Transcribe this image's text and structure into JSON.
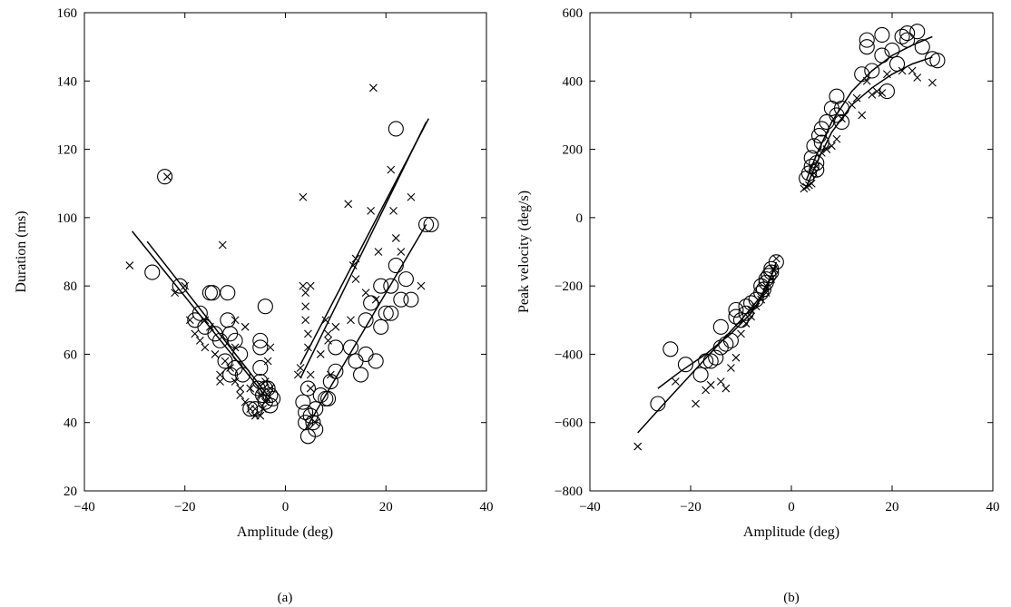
{
  "chart_data": [
    {
      "type": "scatter",
      "panel_label": "(a)",
      "xlabel": "Amplitude (deg)",
      "ylabel": "Duration (ms)",
      "xlim": [
        -40,
        40
      ],
      "ylim": [
        20,
        160
      ],
      "xticks": [
        -40,
        -20,
        0,
        20,
        40
      ],
      "yticks": [
        20,
        40,
        60,
        80,
        100,
        120,
        140,
        160
      ],
      "xtick_labels": [
        "−40",
        "−20",
        "0",
        "20",
        "40"
      ],
      "ytick_labels": [
        "20",
        "40",
        "60",
        "80",
        "100",
        "120",
        "140",
        "160"
      ],
      "series": [
        {
          "marker": "circle",
          "points": [
            [
              -24,
              112
            ],
            [
              -26.5,
              84
            ],
            [
              -21,
              80
            ],
            [
              -18,
              70
            ],
            [
              -17,
              72
            ],
            [
              -16,
              68
            ],
            [
              -15,
              78
            ],
            [
              -14.5,
              78
            ],
            [
              -14,
              66
            ],
            [
              -13,
              64
            ],
            [
              -12,
              58
            ],
            [
              -11.5,
              78
            ],
            [
              -11.5,
              70
            ],
            [
              -11,
              66
            ],
            [
              -11,
              54
            ],
            [
              -10,
              64
            ],
            [
              -10,
              56
            ],
            [
              -9,
              60
            ],
            [
              -8.5,
              54
            ],
            [
              -7,
              44
            ],
            [
              -6,
              44
            ],
            [
              -5.5,
              50
            ],
            [
              -5,
              64
            ],
            [
              -5,
              62
            ],
            [
              -5,
              56
            ],
            [
              -5,
              52
            ],
            [
              -4.5,
              48
            ],
            [
              -4,
              50
            ],
            [
              -4,
              46
            ],
            [
              -4,
              74
            ],
            [
              -3.5,
              50
            ],
            [
              -3,
              48
            ],
            [
              -3,
              45
            ],
            [
              -2.5,
              47
            ],
            [
              3.5,
              46
            ],
            [
              4,
              43
            ],
            [
              4,
              40
            ],
            [
              4.5,
              36
            ],
            [
              4.5,
              50
            ],
            [
              5,
              42
            ],
            [
              5.5,
              40
            ],
            [
              6,
              44
            ],
            [
              6,
              38
            ],
            [
              7,
              48
            ],
            [
              8,
              47
            ],
            [
              8.5,
              47
            ],
            [
              9,
              52
            ],
            [
              10,
              55
            ],
            [
              10,
              62
            ],
            [
              13,
              62
            ],
            [
              14,
              58
            ],
            [
              15,
              54
            ],
            [
              16,
              60
            ],
            [
              16,
              70
            ],
            [
              17,
              75
            ],
            [
              18,
              58
            ],
            [
              19,
              68
            ],
            [
              19,
              80
            ],
            [
              20,
              72
            ],
            [
              21,
              72
            ],
            [
              21,
              80
            ],
            [
              22,
              126
            ],
            [
              22,
              86
            ],
            [
              23,
              76
            ],
            [
              24,
              82
            ],
            [
              25,
              76
            ],
            [
              28,
              98
            ],
            [
              29,
              98
            ]
          ]
        },
        {
          "marker": "cross",
          "points": [
            [
              -31,
              86
            ],
            [
              -23.5,
              112
            ],
            [
              -22,
              78
            ],
            [
              -20,
              80
            ],
            [
              -19,
              70
            ],
            [
              -18,
              66
            ],
            [
              -17,
              64
            ],
            [
              -16,
              70
            ],
            [
              -16,
              62
            ],
            [
              -15,
              68
            ],
            [
              -14,
              60
            ],
            [
              -13,
              54
            ],
            [
              -13,
              52
            ],
            [
              -12.5,
              92
            ],
            [
              -12,
              58
            ],
            [
              -11,
              56
            ],
            [
              -10,
              70
            ],
            [
              -10,
              62
            ],
            [
              -10,
              52
            ],
            [
              -9,
              50
            ],
            [
              -9,
              48
            ],
            [
              -8,
              46
            ],
            [
              -8,
              68
            ],
            [
              -7,
              50
            ],
            [
              -7,
              44
            ],
            [
              -6,
              44
            ],
            [
              -6,
              42
            ],
            [
              -5,
              42
            ],
            [
              -5,
              48
            ],
            [
              -4.5,
              44
            ],
            [
              -4,
              52
            ],
            [
              -4,
              46
            ],
            [
              -3.5,
              58
            ],
            [
              -3,
              62
            ],
            [
              -3,
              50
            ],
            [
              2.5,
              54
            ],
            [
              3,
              56
            ],
            [
              3.5,
              106
            ],
            [
              3.5,
              80
            ],
            [
              4,
              78
            ],
            [
              4,
              74
            ],
            [
              4,
              70
            ],
            [
              4.5,
              66
            ],
            [
              4.5,
              62
            ],
            [
              5,
              80
            ],
            [
              5,
              54
            ],
            [
              5,
              50
            ],
            [
              6,
              40
            ],
            [
              7,
              60
            ],
            [
              8,
              70
            ],
            [
              8.5,
              66
            ],
            [
              8.5,
              64
            ],
            [
              9,
              54
            ],
            [
              10,
              68
            ],
            [
              12.5,
              104
            ],
            [
              13,
              70
            ],
            [
              13.5,
              86
            ],
            [
              14,
              88
            ],
            [
              14,
              82
            ],
            [
              16,
              78
            ],
            [
              17,
              102
            ],
            [
              17.5,
              138
            ],
            [
              18,
              76
            ],
            [
              18.5,
              90
            ],
            [
              21,
              114
            ],
            [
              21.5,
              102
            ],
            [
              22,
              94
            ],
            [
              23,
              90
            ],
            [
              25,
              106
            ],
            [
              27,
              80
            ]
          ]
        }
      ],
      "fit_lines": [
        [
          [
            -30.5,
            96
          ],
          [
            -3,
            46
          ]
        ],
        [
          [
            -27.5,
            93
          ],
          [
            -3,
            47
          ]
        ],
        [
          [
            3,
            57
          ],
          [
            28.5,
            129
          ]
        ],
        [
          [
            3,
            53
          ],
          [
            28,
            128
          ]
        ],
        [
          [
            4,
            38
          ],
          [
            28,
            98
          ]
        ]
      ]
    },
    {
      "type": "scatter",
      "panel_label": "(b)",
      "xlabel": "Amplitude (deg)",
      "ylabel": "Peak velocity (deg/s)",
      "xlim": [
        -40,
        40
      ],
      "ylim": [
        -800,
        600
      ],
      "xticks": [
        -40,
        -20,
        0,
        20,
        40
      ],
      "yticks": [
        -800,
        -600,
        -400,
        -200,
        0,
        200,
        400,
        600
      ],
      "xtick_labels": [
        "−40",
        "−20",
        "0",
        "20",
        "40"
      ],
      "ytick_labels": [
        "−800",
        "−600",
        "−400",
        "−200",
        "0",
        "200",
        "400",
        "600"
      ],
      "series": [
        {
          "marker": "circle",
          "points": [
            [
              -26.5,
              -545
            ],
            [
              -24,
              -385
            ],
            [
              -21,
              -430
            ],
            [
              -18,
              -460
            ],
            [
              -17,
              -420
            ],
            [
              -16,
              -420
            ],
            [
              -15,
              -410
            ],
            [
              -14,
              -320
            ],
            [
              -14,
              -380
            ],
            [
              -13,
              -370
            ],
            [
              -12,
              -360
            ],
            [
              -11,
              -270
            ],
            [
              -11,
              -290
            ],
            [
              -10,
              -300
            ],
            [
              -9,
              -260
            ],
            [
              -9,
              -280
            ],
            [
              -8,
              -250
            ],
            [
              -7,
              -240
            ],
            [
              -6,
              -220
            ],
            [
              -6,
              -200
            ],
            [
              -5.5,
              -210
            ],
            [
              -5,
              -180
            ],
            [
              -5,
              -190
            ],
            [
              -4.5,
              -170
            ],
            [
              -4,
              -160
            ],
            [
              -4,
              -150
            ],
            [
              -3,
              -130
            ],
            [
              3,
              115
            ],
            [
              3.5,
              130
            ],
            [
              4,
              150
            ],
            [
              4,
              175
            ],
            [
              4.5,
              210
            ],
            [
              5,
              160
            ],
            [
              5,
              140
            ],
            [
              5.5,
              240
            ],
            [
              6,
              220
            ],
            [
              6,
              260
            ],
            [
              7,
              280
            ],
            [
              8,
              320
            ],
            [
              9,
              300
            ],
            [
              9,
              355
            ],
            [
              10,
              280
            ],
            [
              10,
              320
            ],
            [
              14,
              420
            ],
            [
              15,
              520
            ],
            [
              15,
              500
            ],
            [
              16,
              430
            ],
            [
              18,
              535
            ],
            [
              18,
              475
            ],
            [
              19,
              370
            ],
            [
              20,
              490
            ],
            [
              21,
              450
            ],
            [
              22,
              530
            ],
            [
              23,
              520
            ],
            [
              23,
              540
            ],
            [
              25,
              545
            ],
            [
              26,
              500
            ],
            [
              28,
              465
            ],
            [
              29,
              460
            ]
          ]
        },
        {
          "marker": "cross",
          "points": [
            [
              -30.5,
              -670
            ],
            [
              -23,
              -480
            ],
            [
              -19,
              -545
            ],
            [
              -17,
              -505
            ],
            [
              -16,
              -490
            ],
            [
              -14,
              -480
            ],
            [
              -13,
              -500
            ],
            [
              -12,
              -440
            ],
            [
              -11,
              -410
            ],
            [
              -10,
              -340
            ],
            [
              -9,
              -310
            ],
            [
              -8,
              -290
            ],
            [
              -8,
              -270
            ],
            [
              -7,
              -260
            ],
            [
              -6,
              -240
            ],
            [
              -5,
              -220
            ],
            [
              -5,
              -200
            ],
            [
              -4,
              -180
            ],
            [
              -3.5,
              -150
            ],
            [
              -3,
              -120
            ],
            [
              2.5,
              85
            ],
            [
              3,
              90
            ],
            [
              3.5,
              95
            ],
            [
              4,
              100
            ],
            [
              4.5,
              130
            ],
            [
              5,
              150
            ],
            [
              6,
              190
            ],
            [
              7,
              200
            ],
            [
              8,
              210
            ],
            [
              9,
              230
            ],
            [
              10,
              290
            ],
            [
              12,
              330
            ],
            [
              13,
              350
            ],
            [
              14,
              300
            ],
            [
              15,
              400
            ],
            [
              16,
              360
            ],
            [
              17,
              370
            ],
            [
              18,
              365
            ],
            [
              19,
              420
            ],
            [
              22,
              430
            ],
            [
              24,
              430
            ],
            [
              25,
              410
            ],
            [
              28,
              395
            ]
          ]
        }
      ],
      "fit_lines": [
        [
          [
            -30.5,
            -630
          ],
          [
            -25,
            -540
          ],
          [
            -20,
            -460
          ],
          [
            -15,
            -380
          ],
          [
            -10,
            -300
          ],
          [
            -6,
            -230
          ],
          [
            -3,
            -140
          ]
        ],
        [
          [
            -26.5,
            -500
          ],
          [
            -22,
            -450
          ],
          [
            -17,
            -400
          ],
          [
            -12,
            -340
          ],
          [
            -8,
            -280
          ],
          [
            -5,
            -210
          ],
          [
            -3,
            -130
          ]
        ],
        [
          [
            3,
            90
          ],
          [
            5,
            160
          ],
          [
            8,
            250
          ],
          [
            12,
            330
          ],
          [
            16,
            380
          ],
          [
            20,
            420
          ],
          [
            24,
            450
          ],
          [
            28,
            470
          ]
        ],
        [
          [
            3,
            110
          ],
          [
            5,
            185
          ],
          [
            8,
            280
          ],
          [
            12,
            370
          ],
          [
            16,
            430
          ],
          [
            20,
            475
          ],
          [
            24,
            505
          ],
          [
            28,
            530
          ]
        ]
      ]
    }
  ]
}
